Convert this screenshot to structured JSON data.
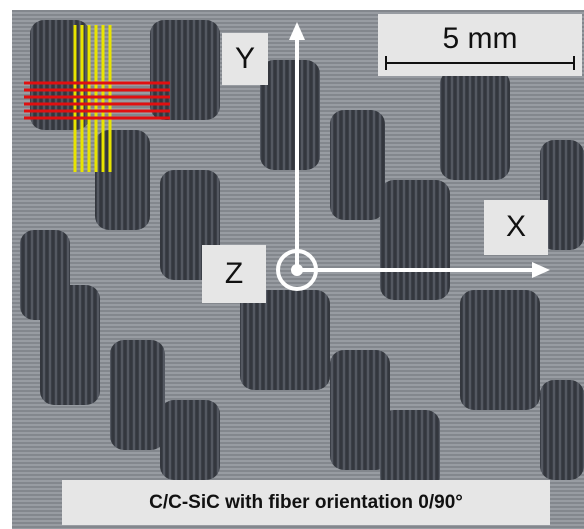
{
  "scale_bar": "5 mm",
  "axes": {
    "y": "Y",
    "x": "X",
    "z": "Z"
  },
  "caption": "C/C-SiC with fiber orientation 0/90°"
}
